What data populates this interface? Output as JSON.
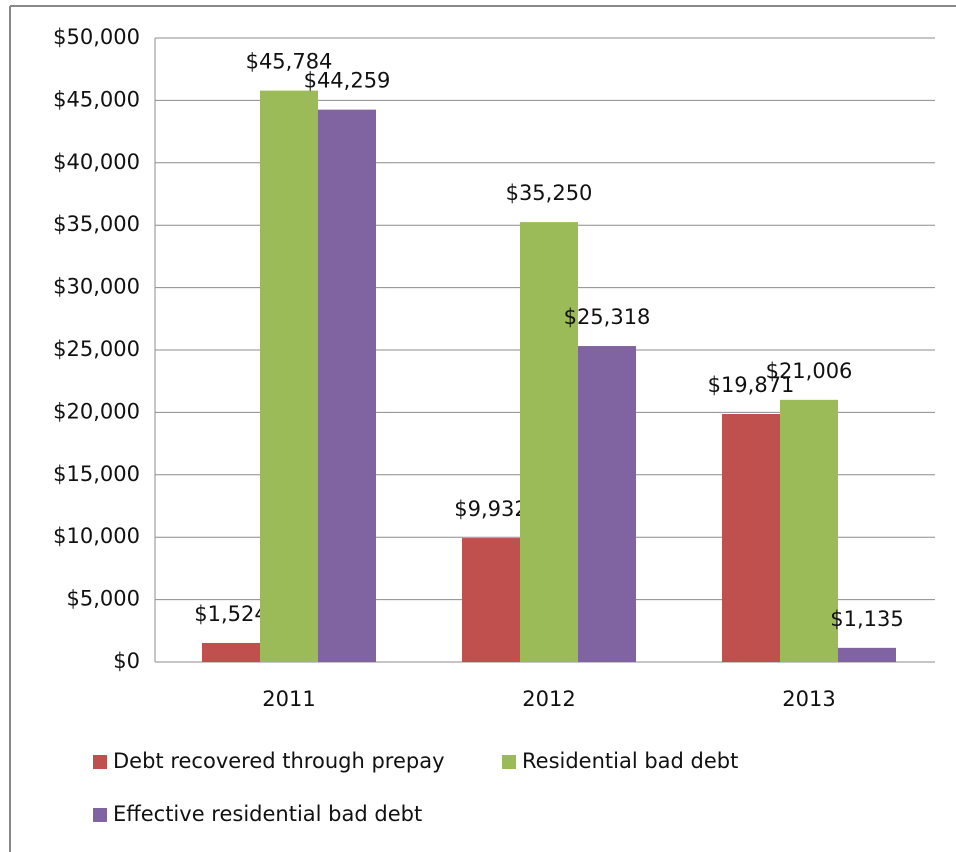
{
  "chart_data": {
    "type": "bar",
    "categories": [
      "2011",
      "2012",
      "2013"
    ],
    "series": [
      {
        "name": "Debt recovered through prepay",
        "color": "#c0504d",
        "values": [
          1524,
          9932,
          19871
        ],
        "value_labels": [
          "$1,524",
          "$9,932",
          "$19,871"
        ]
      },
      {
        "name": "Residential bad debt",
        "color": "#9bbb59",
        "values": [
          45784,
          35250,
          21006
        ],
        "value_labels": [
          "$45,784",
          "$35,250",
          "$21,006"
        ]
      },
      {
        "name": "Effective residential bad debt",
        "color": "#8064a2",
        "values": [
          44259,
          25318,
          1135
        ],
        "value_labels": [
          "$44,259",
          "$25,318",
          "$1,135"
        ]
      }
    ],
    "ylim": [
      0,
      50000
    ],
    "yticks": [
      {
        "value": 0,
        "label": "$0"
      },
      {
        "value": 5000,
        "label": "$5,000"
      },
      {
        "value": 10000,
        "label": "$10,000"
      },
      {
        "value": 15000,
        "label": "$15,000"
      },
      {
        "value": 20000,
        "label": "$20,000"
      },
      {
        "value": 25000,
        "label": "$25,000"
      },
      {
        "value": 30000,
        "label": "$30,000"
      },
      {
        "value": 35000,
        "label": "$35,000"
      },
      {
        "value": 40000,
        "label": "$40,000"
      },
      {
        "value": 45000,
        "label": "$45,000"
      },
      {
        "value": 50000,
        "label": "$50,000"
      }
    ],
    "grid": true,
    "legend": "bottom"
  }
}
